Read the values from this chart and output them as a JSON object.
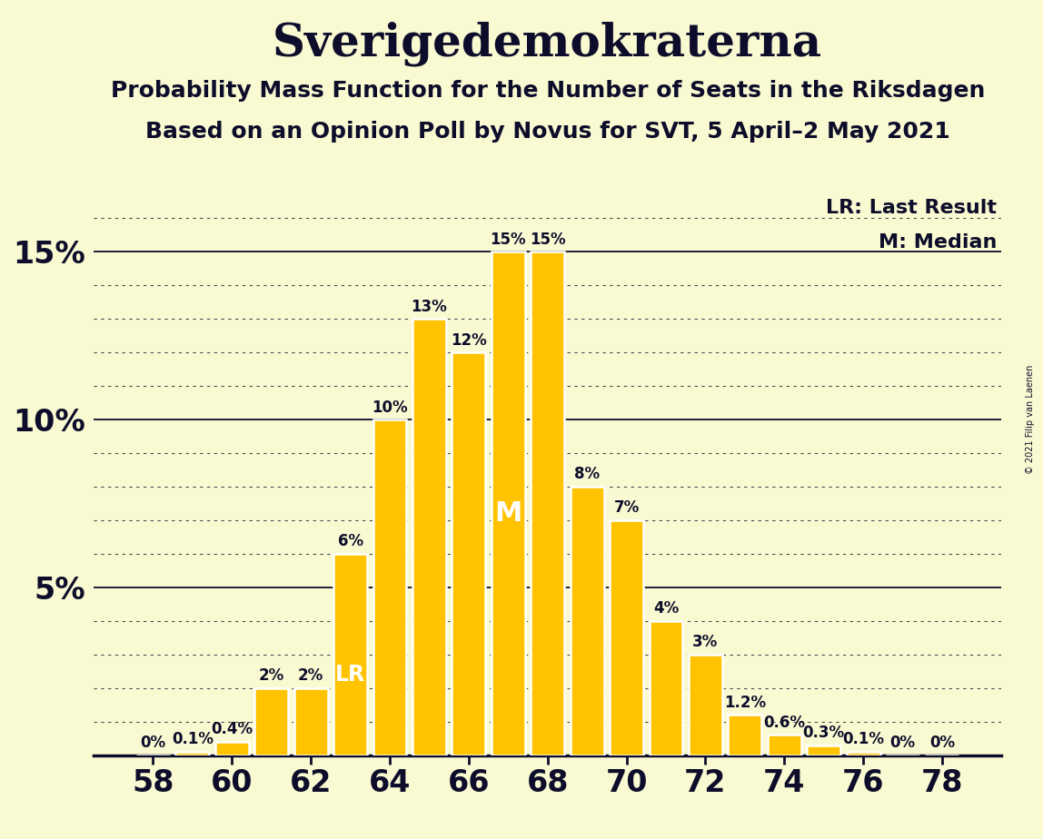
{
  "title": "Sverigedemokraterna",
  "subtitle1": "Probability Mass Function for the Number of Seats in the Riksdagen",
  "subtitle2": "Based on an Opinion Poll by Novus for SVT, 5 April–2 May 2021",
  "copyright": "© 2021 Filip van Laenen",
  "seats": [
    58,
    59,
    60,
    61,
    62,
    63,
    64,
    65,
    66,
    67,
    68,
    69,
    70,
    71,
    72,
    73,
    74,
    75,
    76,
    77,
    78
  ],
  "probabilities": [
    0.0,
    0.1,
    0.4,
    2.0,
    2.0,
    6.0,
    10.0,
    13.0,
    12.0,
    15.0,
    15.0,
    8.0,
    7.0,
    4.0,
    3.0,
    1.2,
    0.6,
    0.3,
    0.1,
    0.0,
    0.0
  ],
  "bar_color": "#FFC300",
  "bg_color": "#FAFAD2",
  "text_color": "#0d0d2b",
  "legend_text1": "LR: Last Result",
  "legend_text2": "M: Median",
  "lr_seat": 63,
  "median_seat": 67,
  "ylim_max": 17,
  "solid_yticks": [
    5,
    10,
    15
  ],
  "bar_label_fontsize": 12,
  "title_fontsize": 36,
  "subtitle_fontsize": 18,
  "ytick_fontsize": 24,
  "xtick_fontsize": 24,
  "legend_fontsize": 16
}
